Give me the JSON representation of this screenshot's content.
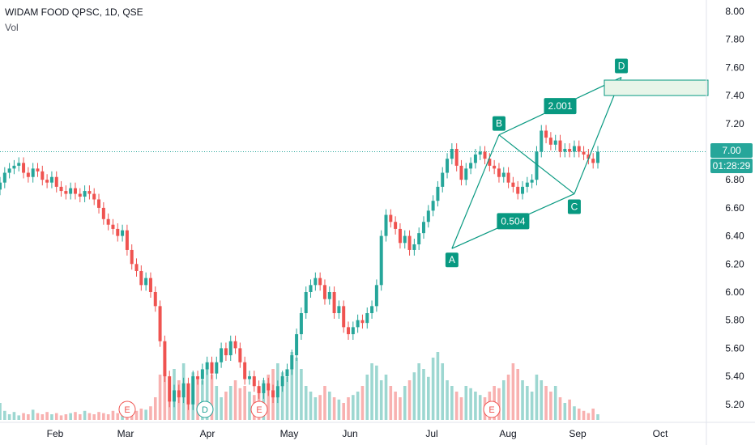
{
  "header": {
    "title": "WIDAM FOOD QPSC, 1D, QSE",
    "vol_label": "Vol"
  },
  "price_tag": {
    "price": "7.00",
    "countdown": "01:28:29"
  },
  "colors": {
    "up": "#26a69a",
    "down": "#ef5350",
    "pattern": "#089981",
    "target_fill": "#e8f5e9"
  },
  "chart_data": {
    "type": "candlestick",
    "title": "WIDAM FOOD QPSC, 1D, QSE",
    "y_ticks": [
      "8.00",
      "7.80",
      "7.60",
      "7.40",
      "7.20",
      "7.00",
      "6.80",
      "6.60",
      "6.40",
      "6.20",
      "6.00",
      "5.80",
      "5.60",
      "5.40",
      "5.20"
    ],
    "y_range": [
      5.1,
      8.05
    ],
    "x_ticks": [
      "Feb",
      "Mar",
      "Apr",
      "May",
      "Jun",
      "Jul",
      "Aug",
      "Sep",
      "Oct"
    ],
    "last_price": 7.0,
    "close_series": [
      6.78,
      6.85,
      6.88,
      6.9,
      6.92,
      6.85,
      6.82,
      6.88,
      6.86,
      6.8,
      6.78,
      6.82,
      6.75,
      6.72,
      6.7,
      6.74,
      6.7,
      6.68,
      6.72,
      6.7,
      6.66,
      6.6,
      6.52,
      6.48,
      6.45,
      6.4,
      6.44,
      6.3,
      6.2,
      6.15,
      6.05,
      6.1,
      6.0,
      5.9,
      5.65,
      5.4,
      5.22,
      5.3,
      5.25,
      5.35,
      5.2,
      5.4,
      5.38,
      5.45,
      5.5,
      5.42,
      5.5,
      5.6,
      5.55,
      5.65,
      5.6,
      5.5,
      5.38,
      5.4,
      5.33,
      5.28,
      5.35,
      5.3,
      5.25,
      5.33,
      5.4,
      5.45,
      5.55,
      5.7,
      5.85,
      6.0,
      6.05,
      6.1,
      6.05,
      5.95,
      6.0,
      5.85,
      5.9,
      5.75,
      5.7,
      5.75,
      5.8,
      5.78,
      5.85,
      5.9,
      6.05,
      6.4,
      6.55,
      6.5,
      6.45,
      6.35,
      6.4,
      6.3,
      6.34,
      6.42,
      6.5,
      6.58,
      6.65,
      6.75,
      6.85,
      6.95,
      7.02,
      6.9,
      6.8,
      6.88,
      6.92,
      6.98,
      7.0,
      6.95,
      6.9,
      6.88,
      6.82,
      6.85,
      6.78,
      6.75,
      6.7,
      6.75,
      6.78,
      6.8,
      7.0,
      7.15,
      7.1,
      7.05,
      7.08,
      7.0,
      7.02,
      7.0,
      7.04,
      7.0,
      6.98,
      6.95,
      6.92,
      7.0
    ],
    "volume": [
      0.15,
      0.08,
      0.05,
      0.07,
      0.04,
      0.06,
      0.05,
      0.09,
      0.06,
      0.05,
      0.07,
      0.05,
      0.06,
      0.04,
      0.05,
      0.06,
      0.07,
      0.05,
      0.08,
      0.06,
      0.05,
      0.07,
      0.06,
      0.05,
      0.08,
      0.06,
      0.07,
      0.05,
      0.06,
      0.08,
      0.1,
      0.09,
      0.12,
      0.2,
      0.4,
      0.55,
      0.3,
      0.45,
      0.35,
      0.5,
      0.3,
      0.42,
      0.38,
      0.35,
      0.45,
      0.4,
      0.3,
      0.2,
      0.25,
      0.3,
      0.35,
      0.28,
      0.3,
      0.25,
      0.22,
      0.3,
      0.35,
      0.4,
      0.45,
      0.5,
      0.42,
      0.38,
      0.6,
      0.55,
      0.45,
      0.3,
      0.25,
      0.2,
      0.22,
      0.3,
      0.25,
      0.2,
      0.18,
      0.15,
      0.2,
      0.22,
      0.25,
      0.3,
      0.4,
      0.5,
      0.48,
      0.35,
      0.4,
      0.3,
      0.25,
      0.2,
      0.3,
      0.35,
      0.42,
      0.5,
      0.45,
      0.38,
      0.55,
      0.6,
      0.5,
      0.35,
      0.3,
      0.25,
      0.2,
      0.3,
      0.28,
      0.25,
      0.22,
      0.2,
      0.25,
      0.3,
      0.28,
      0.35,
      0.4,
      0.5,
      0.45,
      0.35,
      0.3,
      0.25,
      0.4,
      0.35,
      0.3,
      0.25,
      0.3,
      0.2,
      0.15,
      0.18,
      0.12,
      0.1,
      0.08,
      0.06,
      0.1,
      0.05
    ],
    "pattern": {
      "points": [
        {
          "label": "A",
          "date_index": 96,
          "price": 6.31
        },
        {
          "label": "B",
          "date_index": 106,
          "price": 7.12
        },
        {
          "label": "C",
          "date_index": 122,
          "price": 6.7
        },
        {
          "label": "D",
          "date_index": 132,
          "price": 7.53
        }
      ],
      "ratios": [
        "2.001",
        "0.504"
      ],
      "target_zone": [
        7.4,
        7.51
      ]
    },
    "earnings_markers": [
      "E",
      "D",
      "E",
      "E"
    ]
  }
}
